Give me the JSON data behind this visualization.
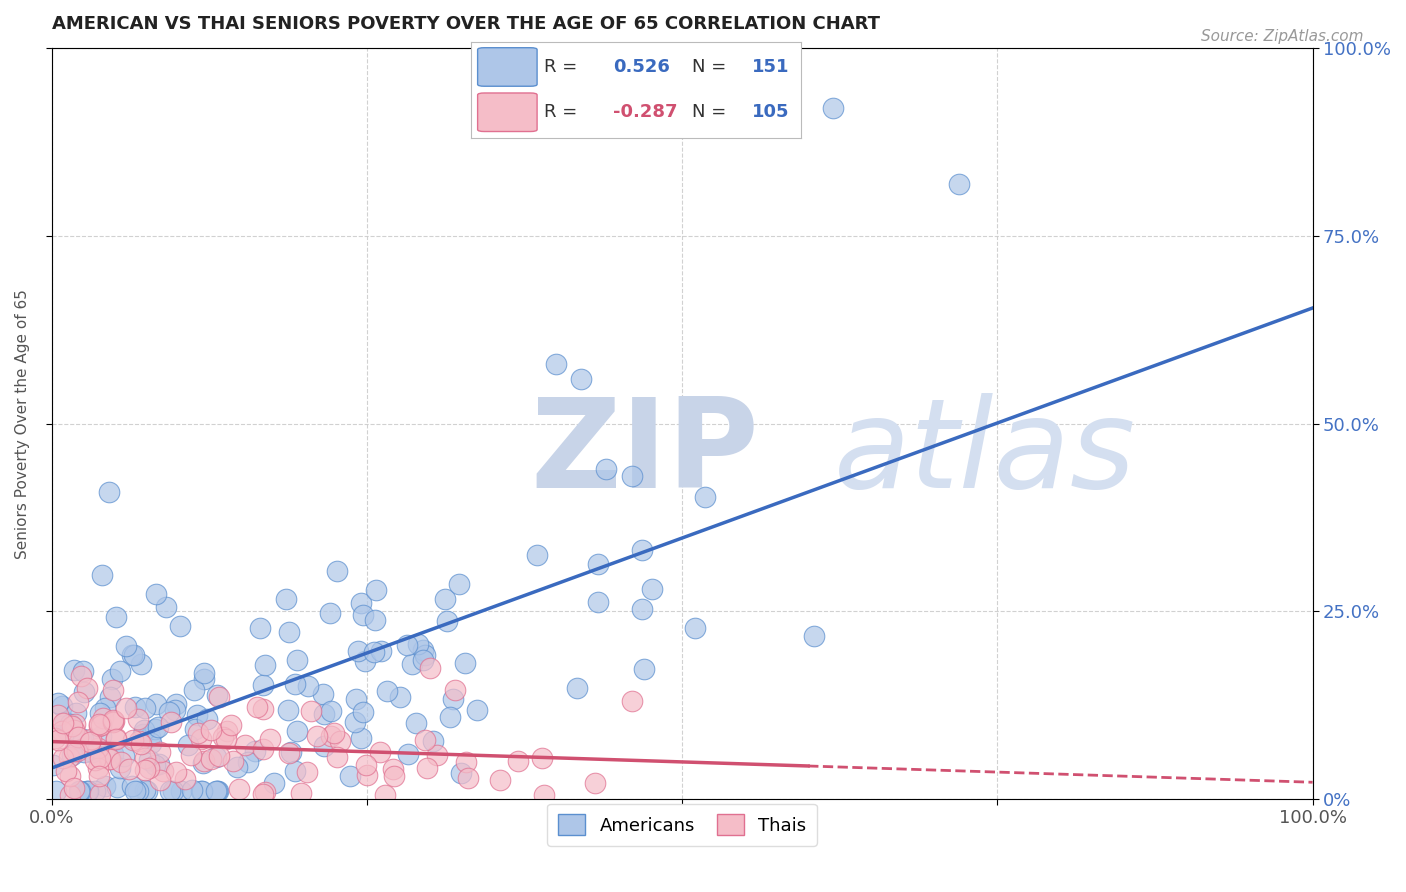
{
  "title": "AMERICAN VS THAI SENIORS POVERTY OVER THE AGE OF 65 CORRELATION CHART",
  "source_text": "Source: ZipAtlas.com",
  "ylabel": "Seniors Poverty Over the Age of 65",
  "xlim": [
    0,
    1
  ],
  "ylim": [
    0,
    1
  ],
  "blue_color": "#aec6e8",
  "blue_edge_color": "#5b8fcf",
  "blue_line_color": "#3a6abf",
  "pink_color": "#f5bdc8",
  "pink_edge_color": "#e07090",
  "pink_line_color": "#d05070",
  "R_blue": 0.526,
  "N_blue": 151,
  "R_pink": -0.287,
  "N_pink": 105,
  "background_color": "#ffffff",
  "grid_color": "#cccccc",
  "title_color": "#222222",
  "watermark_color": "#dce6f0",
  "right_tick_color": "#4472c4"
}
